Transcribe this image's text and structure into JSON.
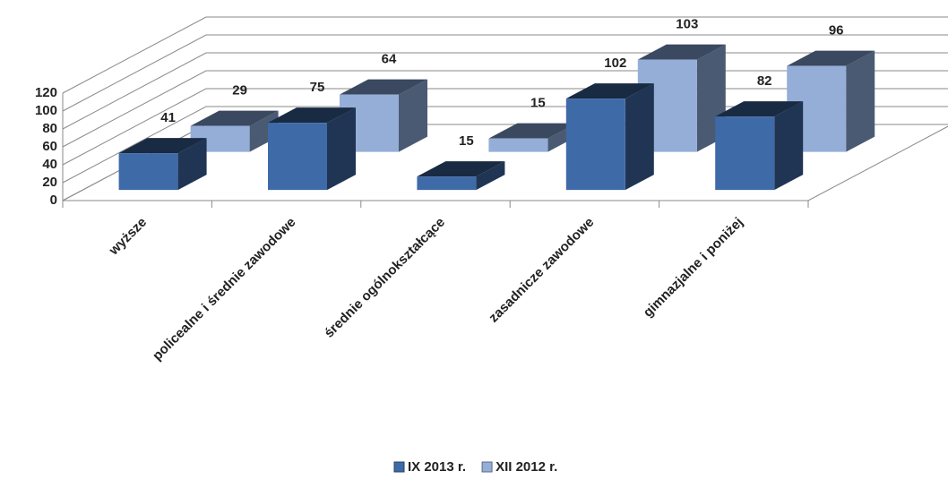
{
  "chart_data": {
    "type": "bar3d",
    "categories": [
      "wyższe",
      "policealne i średnie zawodowe",
      "średnie ogólnokształcące",
      "zasadnicze zawodowe",
      "gimnazjalne i poniżej"
    ],
    "series": [
      {
        "name": "IX 2013 r.",
        "color": "#3f6aa8",
        "values": [
          41,
          75,
          15,
          102,
          82
        ]
      },
      {
        "name": "XII 2012 r.",
        "color": "#95aed8",
        "values": [
          29,
          64,
          15,
          103,
          96
        ]
      }
    ],
    "ylim": [
      0,
      120
    ],
    "yticks": [
      0,
      20,
      40,
      60,
      80,
      100,
      120
    ],
    "grid": true,
    "legend": "bottom"
  }
}
